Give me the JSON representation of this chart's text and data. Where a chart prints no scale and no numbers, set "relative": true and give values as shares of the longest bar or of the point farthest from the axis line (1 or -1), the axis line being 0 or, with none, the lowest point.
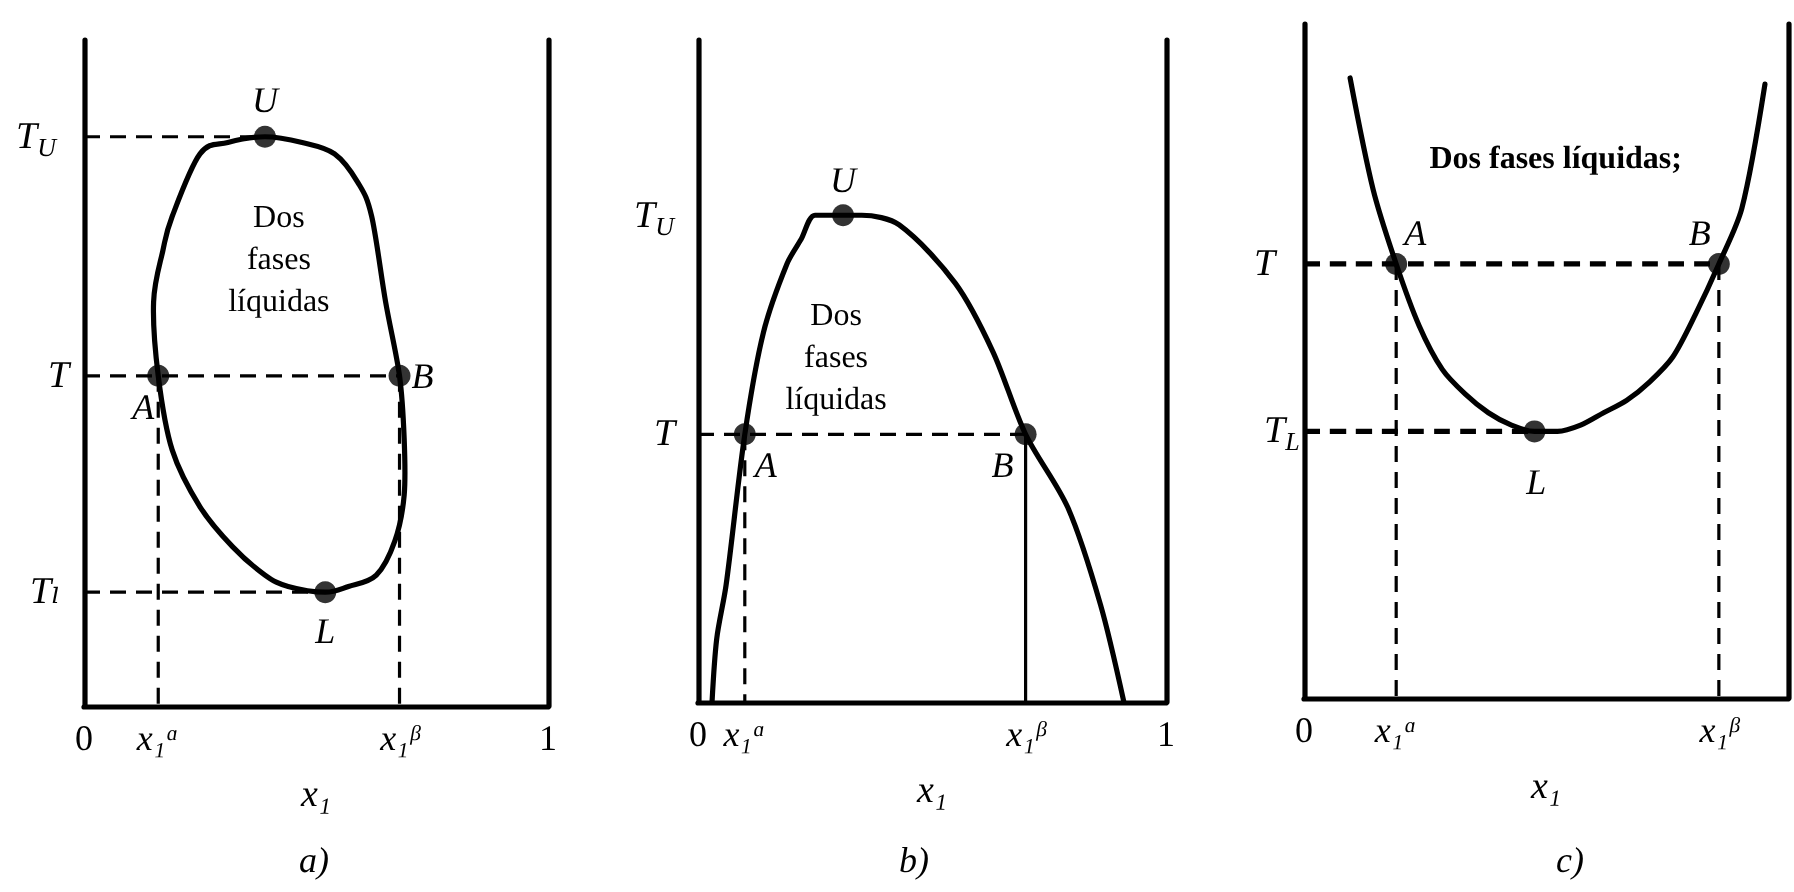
{
  "chart_data": [
    {
      "type": "line",
      "title": "a)",
      "xlabel": "x₁",
      "relative": true,
      "tick_labels": "x",
      "xlim": [
        0,
        1
      ],
      "xticks": [
        {
          "value": 0,
          "label": "0"
        },
        {
          "value": 0.16,
          "label": "x₁ᵅ"
        },
        {
          "value": 0.68,
          "label": "x₁ᵝ"
        },
        {
          "value": 1,
          "label": "1"
        }
      ],
      "series": [
        {
          "type": "line",
          "color": "#000000",
          "marker": "none",
          "line_style": "dashed",
          "x": [
            0,
            0.39
          ],
          "values": [
            1,
            1
          ]
        },
        {
          "type": "line",
          "color": "#000000",
          "marker": "none",
          "line_style": "dashed",
          "x": [
            0,
            0.68
          ],
          "values": [
            0.58,
            0.58
          ]
        },
        {
          "type": "line",
          "color": "#000000",
          "marker": "none",
          "line_style": "dashed",
          "x": [
            0,
            0.52
          ],
          "values": [
            0.2,
            0.2
          ]
        },
        {
          "type": "line",
          "color": "#000000",
          "marker": "none",
          "line_style": "dashed",
          "x": [
            0.16,
            0.16
          ],
          "values": [
            0.58,
            0
          ]
        },
        {
          "type": "line",
          "color": "#000000",
          "marker": "none",
          "line_style": "dashed",
          "x": [
            0.68,
            0.68
          ],
          "values": [
            0.58,
            0
          ]
        },
        {
          "type": "scatter",
          "color": "#000000",
          "marker": "circle",
          "x": [
            0.39,
            0.16,
            0.68,
            0.52
          ],
          "values": [
            1,
            0.58,
            0.58,
            0.2
          ]
        }
      ],
      "annotations": [
        {
          "text": "T$_{U}$",
          "x": 0,
          "y": 1
        },
        {
          "text": "T",
          "x": 0,
          "y": 0.58
        },
        {
          "text": "Tₗ",
          "x": 0,
          "y": 0.2
        },
        {
          "text": "U",
          "x": 0.39,
          "y": 1
        },
        {
          "text": "A",
          "x": 0.16,
          "y": 0.58
        },
        {
          "text": "B",
          "x": 0.68,
          "y": 0.58
        },
        {
          "text": "L",
          "x": 0.52,
          "y": 0.2
        },
        "Dos\nfases\nlíquidas"
      ]
    },
    {
      "type": "line",
      "title": "b)",
      "xlabel": "x₁",
      "relative": true,
      "tick_labels": "x",
      "xlim": [
        0,
        1
      ],
      "xticks": [
        {
          "value": 0,
          "label": "0"
        },
        {
          "value": 0.1,
          "label": "x₁ᵅ"
        },
        {
          "value": 0.7,
          "label": "x₁ᵝ"
        },
        {
          "value": 1,
          "label": "1"
        }
      ],
      "series": [
        {
          "type": "line",
          "color": "#000000",
          "marker": "none",
          "line_style": "solid",
          "x": [
            0.03,
            0.04,
            0.06,
            0.1,
            0.14,
            0.19,
            0.22,
            0.25,
            0.31,
            0.35,
            0.43,
            0.55,
            0.63,
            0.7,
            0.79,
            0.86,
            0.91
          ],
          "values": [
            0,
            0.13,
            0.24,
            0.55,
            0.76,
            0.9,
            0.95,
            1,
            1,
            1,
            0.98,
            0.86,
            0.72,
            0.55,
            0.4,
            0.2,
            0
          ]
        },
        {
          "type": "line",
          "color": "#000000",
          "marker": "none",
          "line_style": "dashed",
          "x": [
            0,
            0.7
          ],
          "values": [
            0.55,
            0.55
          ]
        },
        {
          "type": "line",
          "color": "#000000",
          "marker": "none",
          "line_style": "dashed",
          "x": [
            0.1,
            0.1
          ],
          "values": [
            0.55,
            0
          ]
        },
        {
          "type": "line",
          "color": "#000000",
          "marker": "none",
          "line_style": "solid",
          "x": [
            0.7,
            0.7
          ],
          "values": [
            0.55,
            0
          ]
        },
        {
          "type": "scatter",
          "color": "#000000",
          "marker": "circle",
          "x": [
            0.31,
            0.1,
            0.7
          ],
          "values": [
            1,
            0.55,
            0.55
          ]
        }
      ],
      "annotations": [
        "T$_{U}$",
        {
          "text": "T",
          "x": 0,
          "y": 0.55
        },
        {
          "text": "U",
          "x": 0.31,
          "y": 1
        },
        {
          "text": "A",
          "x": 0.1,
          "y": 0.55
        },
        {
          "text": "B",
          "x": 0.7,
          "y": 0.55
        },
        "Dos\nfases\nlíquidas"
      ]
    },
    {
      "type": "line",
      "title": "c)",
      "xlabel": "x₁",
      "relative": true,
      "tick_labels": "x",
      "categories": [
        "0",
        null,
        null,
        null,
        "x₁ᵅ",
        null,
        null,
        null,
        null,
        null,
        null,
        null,
        null,
        null,
        null,
        null,
        null,
        null,
        "x₁ᵝ",
        null,
        null,
        null
      ],
      "series": [
        {
          "type": "line",
          "color": "#000000",
          "marker": "none",
          "line_style": "solid",
          "values": [
            null,
            null,
            1,
            0.82,
            0.7,
            0.6,
            0.53,
            0.49,
            0.46,
            0.44,
            0.43,
            0.43,
            0.44,
            0.46,
            0.48,
            0.51,
            0.55,
            0.62,
            0.7,
            0.79,
            0.99,
            null
          ]
        },
        {
          "type": "line",
          "color": "#000000",
          "marker": "none",
          "line_style": "dashed",
          "values": [
            0.7,
            0.7,
            0.7,
            0.7,
            0.7,
            0.7,
            0.7,
            0.7,
            0.7,
            0.7,
            0.7,
            0.7,
            0.7,
            0.7,
            0.7,
            0.7,
            0.7,
            0.7,
            0.7,
            null,
            null,
            null
          ]
        },
        {
          "type": "line",
          "color": "#000000",
          "marker": "none",
          "line_style": "dashed",
          "values": [
            0.43,
            0.43,
            0.43,
            0.43,
            0.43,
            0.43,
            0.43,
            0.43,
            0.43,
            0.43,
            0.43,
            null,
            null,
            null,
            null,
            null,
            null,
            null,
            null,
            null,
            null,
            null
          ]
        },
        {
          "type": "line",
          "color": "#000000",
          "marker": "none",
          "line_style": "dashed",
          "x": [
            "x₁ᵅ",
            "x₁ᵅ"
          ],
          "values": [
            0.7,
            0
          ]
        },
        {
          "type": "line",
          "color": "#000000",
          "marker": "none",
          "line_style": "dashed",
          "x": [
            "x₁ᵝ",
            "x₁ᵝ"
          ],
          "values": [
            0.7,
            0
          ]
        },
        {
          "type": "scatter",
          "color": "#000000",
          "marker": "circle",
          "values": [
            null,
            null,
            null,
            null,
            0.7,
            null,
            null,
            null,
            null,
            null,
            0.43,
            null,
            null,
            null,
            null,
            null,
            null,
            null,
            0.7,
            null,
            null,
            null
          ]
        }
      ],
      "annotations": [
        {
          "text": "T",
          "x": "0",
          "y": 0.7
        },
        {
          "text": "T$_{L}$",
          "x": "0",
          "y": 0.43
        },
        {
          "text": "A",
          "x": "x₁ᵅ",
          "y": 0.7
        },
        {
          "text": "B",
          "x": "x₁ᵝ",
          "y": 0.7
        },
        "L",
        "Dos fases líquidas;"
      ]
    }
  ]
}
